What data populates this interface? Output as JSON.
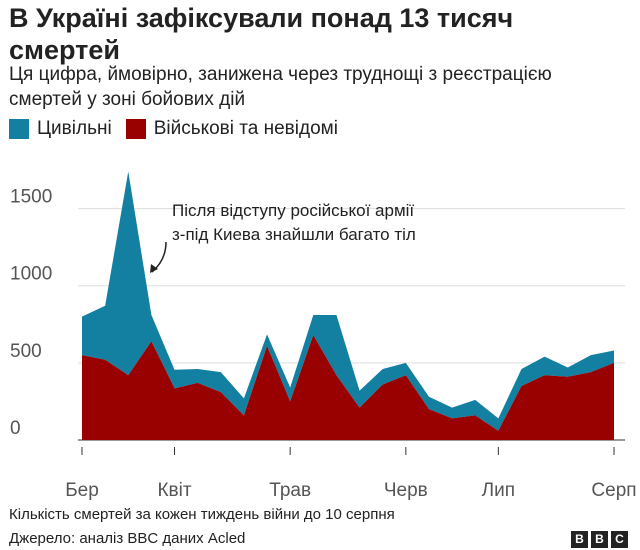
{
  "title": "В Україні зафіксували  понад 13 тисяч смертей",
  "subtitle": "Ця цифра, ймовірно, занижена через труднощі з реєстрацією смертей у зоні бойових дій",
  "legend": [
    {
      "label": "Цивільні",
      "color": "#1380A1"
    },
    {
      "label": "Військові та невідомі",
      "color": "#990000"
    }
  ],
  "note": "Кількість смертей за кожен тиждень війни до 10 серпня",
  "source": "Джерело: аналіз BBC даних Acled",
  "logo": [
    "B",
    "B",
    "C"
  ],
  "chart_data": {
    "type": "area",
    "stacked": true,
    "x": [
      "Бер",
      "",
      "",
      "",
      "Квіт",
      "",
      "",
      "",
      "",
      "Трав",
      "",
      "",
      "",
      "",
      "Черв",
      "",
      "",
      "",
      "Лип",
      "",
      "",
      "",
      "",
      "Серп",
      "",
      ""
    ],
    "series": [
      {
        "name": "Військові та невідомі",
        "color": "#990000",
        "values": [
          550,
          520,
          420,
          640,
          335,
          370,
          310,
          160,
          610,
          250,
          680,
          420,
          210,
          360,
          420,
          200,
          140,
          160,
          60,
          350,
          420,
          410,
          440,
          500,
          0,
          0
        ]
      },
      {
        "name": "Цивільні",
        "color": "#1380A1",
        "values": [
          250,
          350,
          1320,
          170,
          120,
          90,
          130,
          110,
          75,
          90,
          130,
          390,
          110,
          100,
          80,
          80,
          70,
          100,
          80,
          110,
          120,
          60,
          110,
          80,
          0,
          0
        ]
      }
    ],
    "ylim": [
      0,
      1750
    ],
    "yticks": [
      0,
      500,
      1000,
      1500
    ],
    "xtick_labels": [
      "Бер",
      "Квіт",
      "Трав",
      "Черв",
      "Лип",
      "Серп"
    ],
    "xtick_index": [
      0,
      4,
      9,
      14,
      18,
      23
    ],
    "grid": true,
    "annotation": [
      "Після відступу російської армії",
      "з-під Киева знайшли багато тіл"
    ]
  }
}
